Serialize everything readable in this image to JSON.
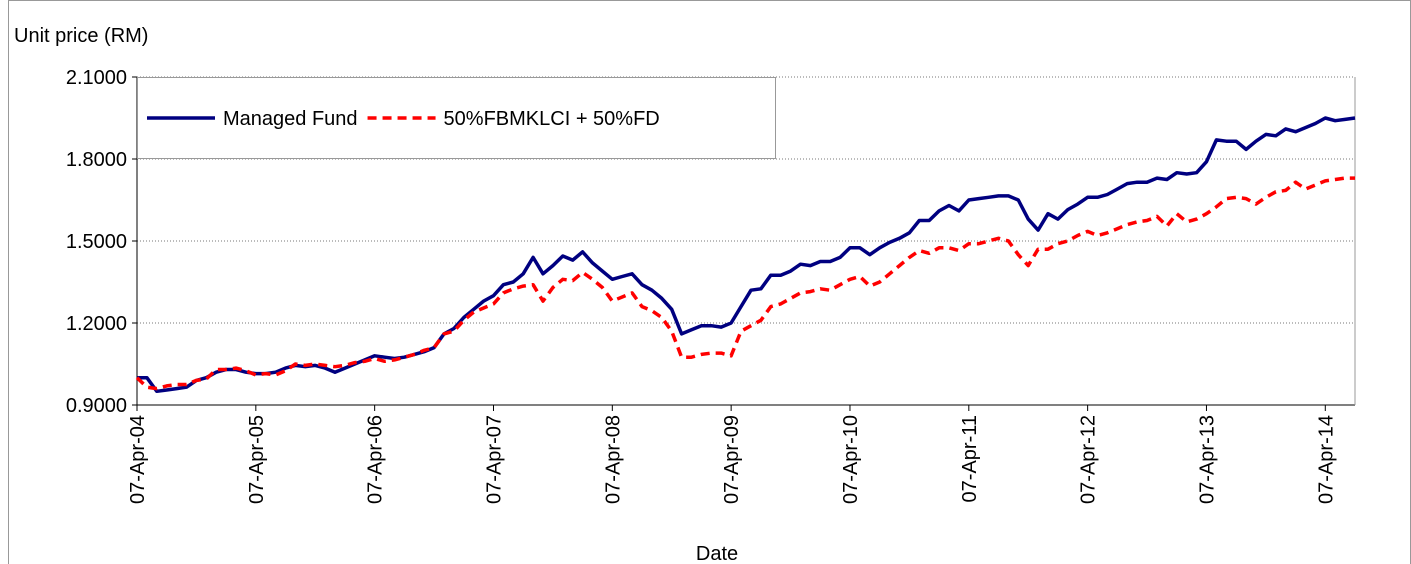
{
  "chart_data": {
    "type": "line",
    "y_label": "Unit price (RM)",
    "x_label": "Date",
    "categories": [
      "07-Apr-04",
      null,
      null,
      null,
      null,
      null,
      null,
      null,
      null,
      null,
      null,
      null,
      "07-Apr-05",
      null,
      null,
      null,
      null,
      null,
      null,
      null,
      null,
      null,
      null,
      null,
      "07-Apr-06",
      null,
      null,
      null,
      null,
      null,
      null,
      null,
      null,
      null,
      null,
      null,
      "07-Apr-07",
      null,
      null,
      null,
      null,
      null,
      null,
      null,
      null,
      null,
      null,
      null,
      "07-Apr-08",
      null,
      null,
      null,
      null,
      null,
      null,
      null,
      null,
      null,
      null,
      null,
      "07-Apr-09",
      null,
      null,
      null,
      null,
      null,
      null,
      null,
      null,
      null,
      null,
      null,
      "07-Apr-10",
      null,
      null,
      null,
      null,
      null,
      null,
      null,
      null,
      null,
      null,
      null,
      "07-Apr-11",
      null,
      null,
      null,
      null,
      null,
      null,
      null,
      null,
      null,
      null,
      null,
      "07-Apr-12",
      null,
      null,
      null,
      null,
      null,
      null,
      null,
      null,
      null,
      null,
      null,
      "07-Apr-13",
      null,
      null,
      null,
      null,
      null,
      null,
      null,
      null,
      null,
      null,
      null,
      "07-Apr-14",
      null,
      null,
      null
    ],
    "series": [
      {
        "name": "Managed Fund",
        "color": "#000080",
        "dash": false,
        "values": [
          1.0,
          1.0,
          0.95,
          0.955,
          0.96,
          0.965,
          0.99,
          1.0,
          1.02,
          1.03,
          1.03,
          1.02,
          1.015,
          1.015,
          1.02,
          1.035,
          1.045,
          1.04,
          1.045,
          1.035,
          1.02,
          1.035,
          1.05,
          1.065,
          1.08,
          1.075,
          1.07,
          1.075,
          1.085,
          1.095,
          1.11,
          1.16,
          1.18,
          1.22,
          1.25,
          1.28,
          1.3,
          1.34,
          1.35,
          1.38,
          1.44,
          1.38,
          1.41,
          1.445,
          1.43,
          1.46,
          1.42,
          1.39,
          1.36,
          1.37,
          1.38,
          1.34,
          1.32,
          1.29,
          1.25,
          1.16,
          1.175,
          1.19,
          1.19,
          1.185,
          1.2,
          1.26,
          1.32,
          1.325,
          1.375,
          1.375,
          1.39,
          1.415,
          1.41,
          1.425,
          1.425,
          1.44,
          1.475,
          1.475,
          1.45,
          1.475,
          1.495,
          1.51,
          1.53,
          1.575,
          1.575,
          1.61,
          1.63,
          1.61,
          1.65,
          1.655,
          1.66,
          1.665,
          1.665,
          1.65,
          1.58,
          1.54,
          1.6,
          1.58,
          1.615,
          1.635,
          1.66,
          1.66,
          1.67,
          1.69,
          1.71,
          1.715,
          1.715,
          1.73,
          1.725,
          1.75,
          1.745,
          1.75,
          1.79,
          1.87,
          1.865,
          1.865,
          1.835,
          1.865,
          1.89,
          1.885,
          1.91,
          1.9,
          1.915,
          1.93,
          1.95,
          1.94,
          1.945,
          1.95
        ]
      },
      {
        "name": "50%FBMKLCI + 50%FD",
        "color": "#ff0000",
        "dash": true,
        "values": [
          1.0,
          0.965,
          0.96,
          0.97,
          0.975,
          0.975,
          0.99,
          0.995,
          1.03,
          1.03,
          1.035,
          1.025,
          1.01,
          1.015,
          1.01,
          1.025,
          1.05,
          1.045,
          1.05,
          1.045,
          1.04,
          1.045,
          1.055,
          1.06,
          1.07,
          1.06,
          1.065,
          1.075,
          1.085,
          1.1,
          1.11,
          1.16,
          1.17,
          1.21,
          1.24,
          1.255,
          1.27,
          1.31,
          1.325,
          1.335,
          1.34,
          1.28,
          1.33,
          1.36,
          1.355,
          1.385,
          1.36,
          1.33,
          1.28,
          1.295,
          1.31,
          1.26,
          1.245,
          1.22,
          1.17,
          1.075,
          1.075,
          1.085,
          1.09,
          1.09,
          1.08,
          1.17,
          1.19,
          1.21,
          1.26,
          1.27,
          1.29,
          1.31,
          1.315,
          1.325,
          1.32,
          1.34,
          1.36,
          1.37,
          1.335,
          1.35,
          1.38,
          1.41,
          1.44,
          1.465,
          1.455,
          1.475,
          1.475,
          1.465,
          1.49,
          1.49,
          1.5,
          1.51,
          1.5,
          1.45,
          1.41,
          1.47,
          1.47,
          1.49,
          1.5,
          1.52,
          1.535,
          1.52,
          1.53,
          1.545,
          1.56,
          1.57,
          1.575,
          1.59,
          1.555,
          1.6,
          1.57,
          1.58,
          1.6,
          1.625,
          1.655,
          1.66,
          1.655,
          1.635,
          1.66,
          1.68,
          1.685,
          1.715,
          1.69,
          1.705,
          1.72,
          1.725,
          1.73,
          1.73
        ]
      }
    ],
    "ylim": [
      0.9,
      2.1
    ],
    "yticks": [
      {
        "value": 0.9,
        "label": "0.9000"
      },
      {
        "value": 1.2,
        "label": "1.2000"
      },
      {
        "value": 1.5,
        "label": "1.5000"
      },
      {
        "value": 1.8,
        "label": "1.8000"
      },
      {
        "value": 2.1,
        "label": "2.1000"
      }
    ],
    "grid": true,
    "legend": "top-left"
  }
}
